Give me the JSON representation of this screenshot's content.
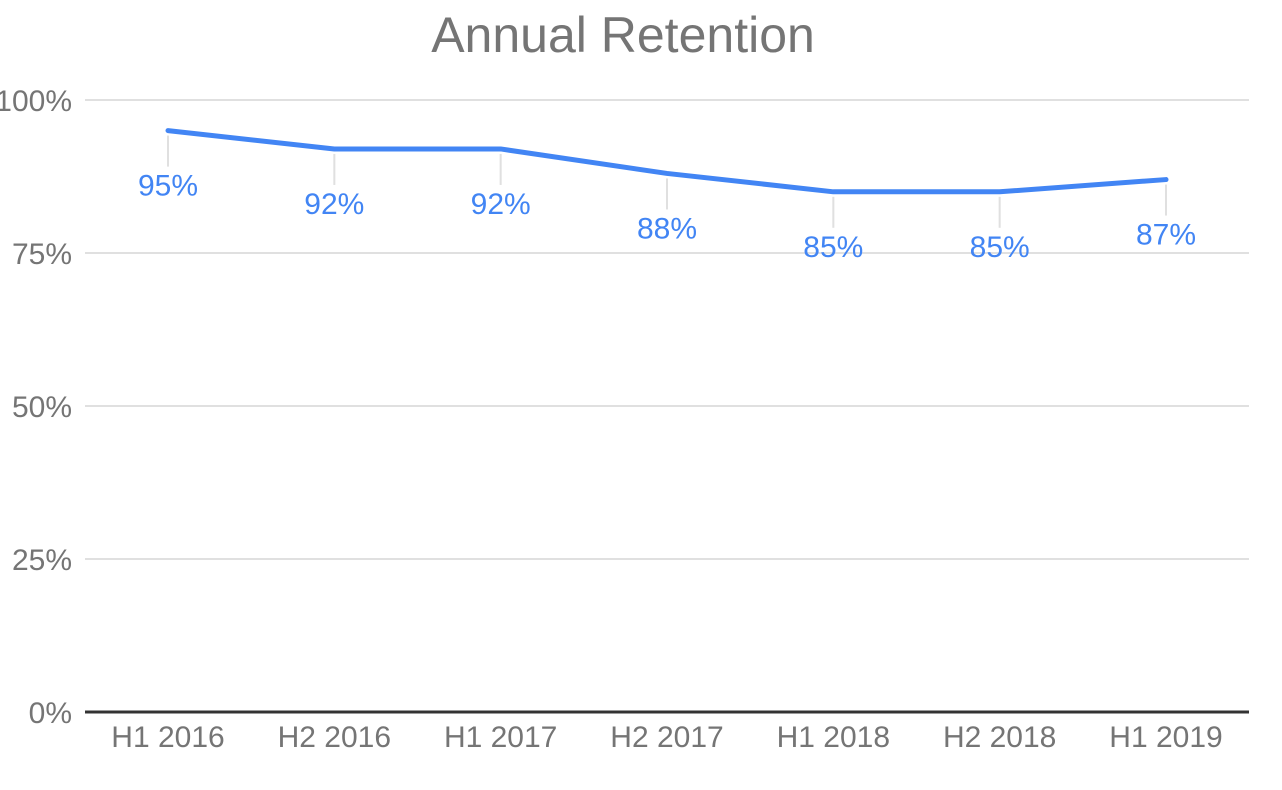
{
  "chart_data": {
    "type": "line",
    "title": "Annual Retention",
    "categories": [
      "H1 2016",
      "H2 2016",
      "H1 2017",
      "H2 2017",
      "H1 2018",
      "H2 2018",
      "H1 2019"
    ],
    "series": [
      {
        "name": "Annual Retention",
        "values": [
          95,
          92,
          92,
          88,
          85,
          85,
          87
        ],
        "point_labels": [
          "95%",
          "92%",
          "92%",
          "88%",
          "85%",
          "85%",
          "87%"
        ]
      }
    ],
    "xlabel": "",
    "ylabel": "",
    "ylim": [
      0,
      100
    ],
    "yticks": [
      {
        "value": 0,
        "label": "0%"
      },
      {
        "value": 25,
        "label": "25%"
      },
      {
        "value": 50,
        "label": "50%"
      },
      {
        "value": 75,
        "label": "75%"
      },
      {
        "value": 100,
        "label": "100%"
      }
    ],
    "grid": true,
    "legend_position": "none",
    "data_labels_visible": true,
    "colors": {
      "line": "#4285f4",
      "data_label": "#4285f4",
      "axis_text": "#757575",
      "title_text": "#757575",
      "gridline": "#e0e0e0",
      "baseline": "#333333",
      "leader_line": "#e0e0e0",
      "background": "#ffffff"
    }
  }
}
